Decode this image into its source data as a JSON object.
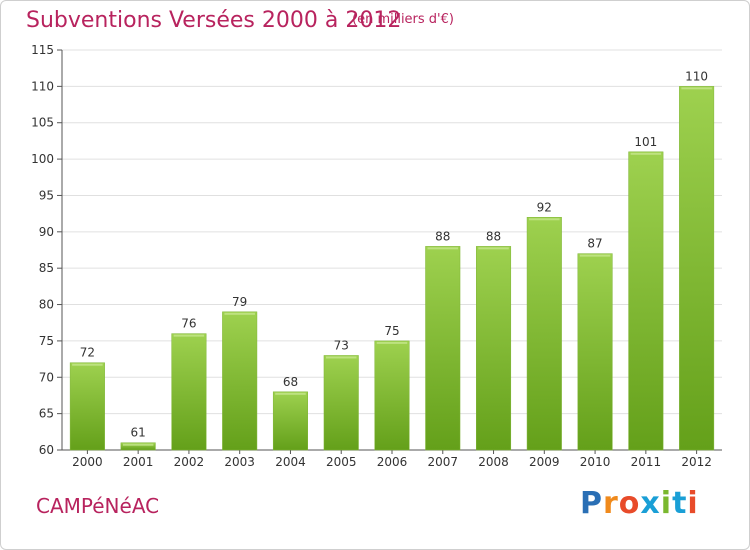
{
  "title": "Subventions Versées 2000 à 2012",
  "subtitle": "(en milliers d'€)",
  "commune": "CAMPéNéAC",
  "logo": {
    "letters": [
      "P",
      "r",
      "o",
      "x",
      "i",
      "t",
      "i"
    ],
    "colors": [
      "#2a6fb5",
      "#f08a1c",
      "#e84b2a",
      "#1a9fd6",
      "#7ab82e",
      "#1a9fd6",
      "#e84b2a"
    ]
  },
  "colors": {
    "bar_light": "#9ed14f",
    "bar_dark": "#64a01a",
    "title": "#b8235e",
    "grid": "#e0e0e0",
    "axis": "#555555"
  },
  "chart_data": {
    "type": "bar",
    "title": "Subventions Versées 2000 à 2012",
    "subtitle": "(en milliers d'€)",
    "xlabel": "",
    "ylabel": "",
    "categories": [
      "2000",
      "2001",
      "2002",
      "2003",
      "2004",
      "2005",
      "2006",
      "2007",
      "2008",
      "2009",
      "2010",
      "2011",
      "2012"
    ],
    "values": [
      72,
      61,
      76,
      79,
      68,
      73,
      75,
      88,
      88,
      92,
      87,
      101,
      110
    ],
    "ylim": [
      60,
      115
    ],
    "yticks": [
      60,
      65,
      70,
      75,
      80,
      85,
      90,
      95,
      100,
      105,
      110,
      115
    ],
    "grid": true,
    "legend": "none"
  }
}
